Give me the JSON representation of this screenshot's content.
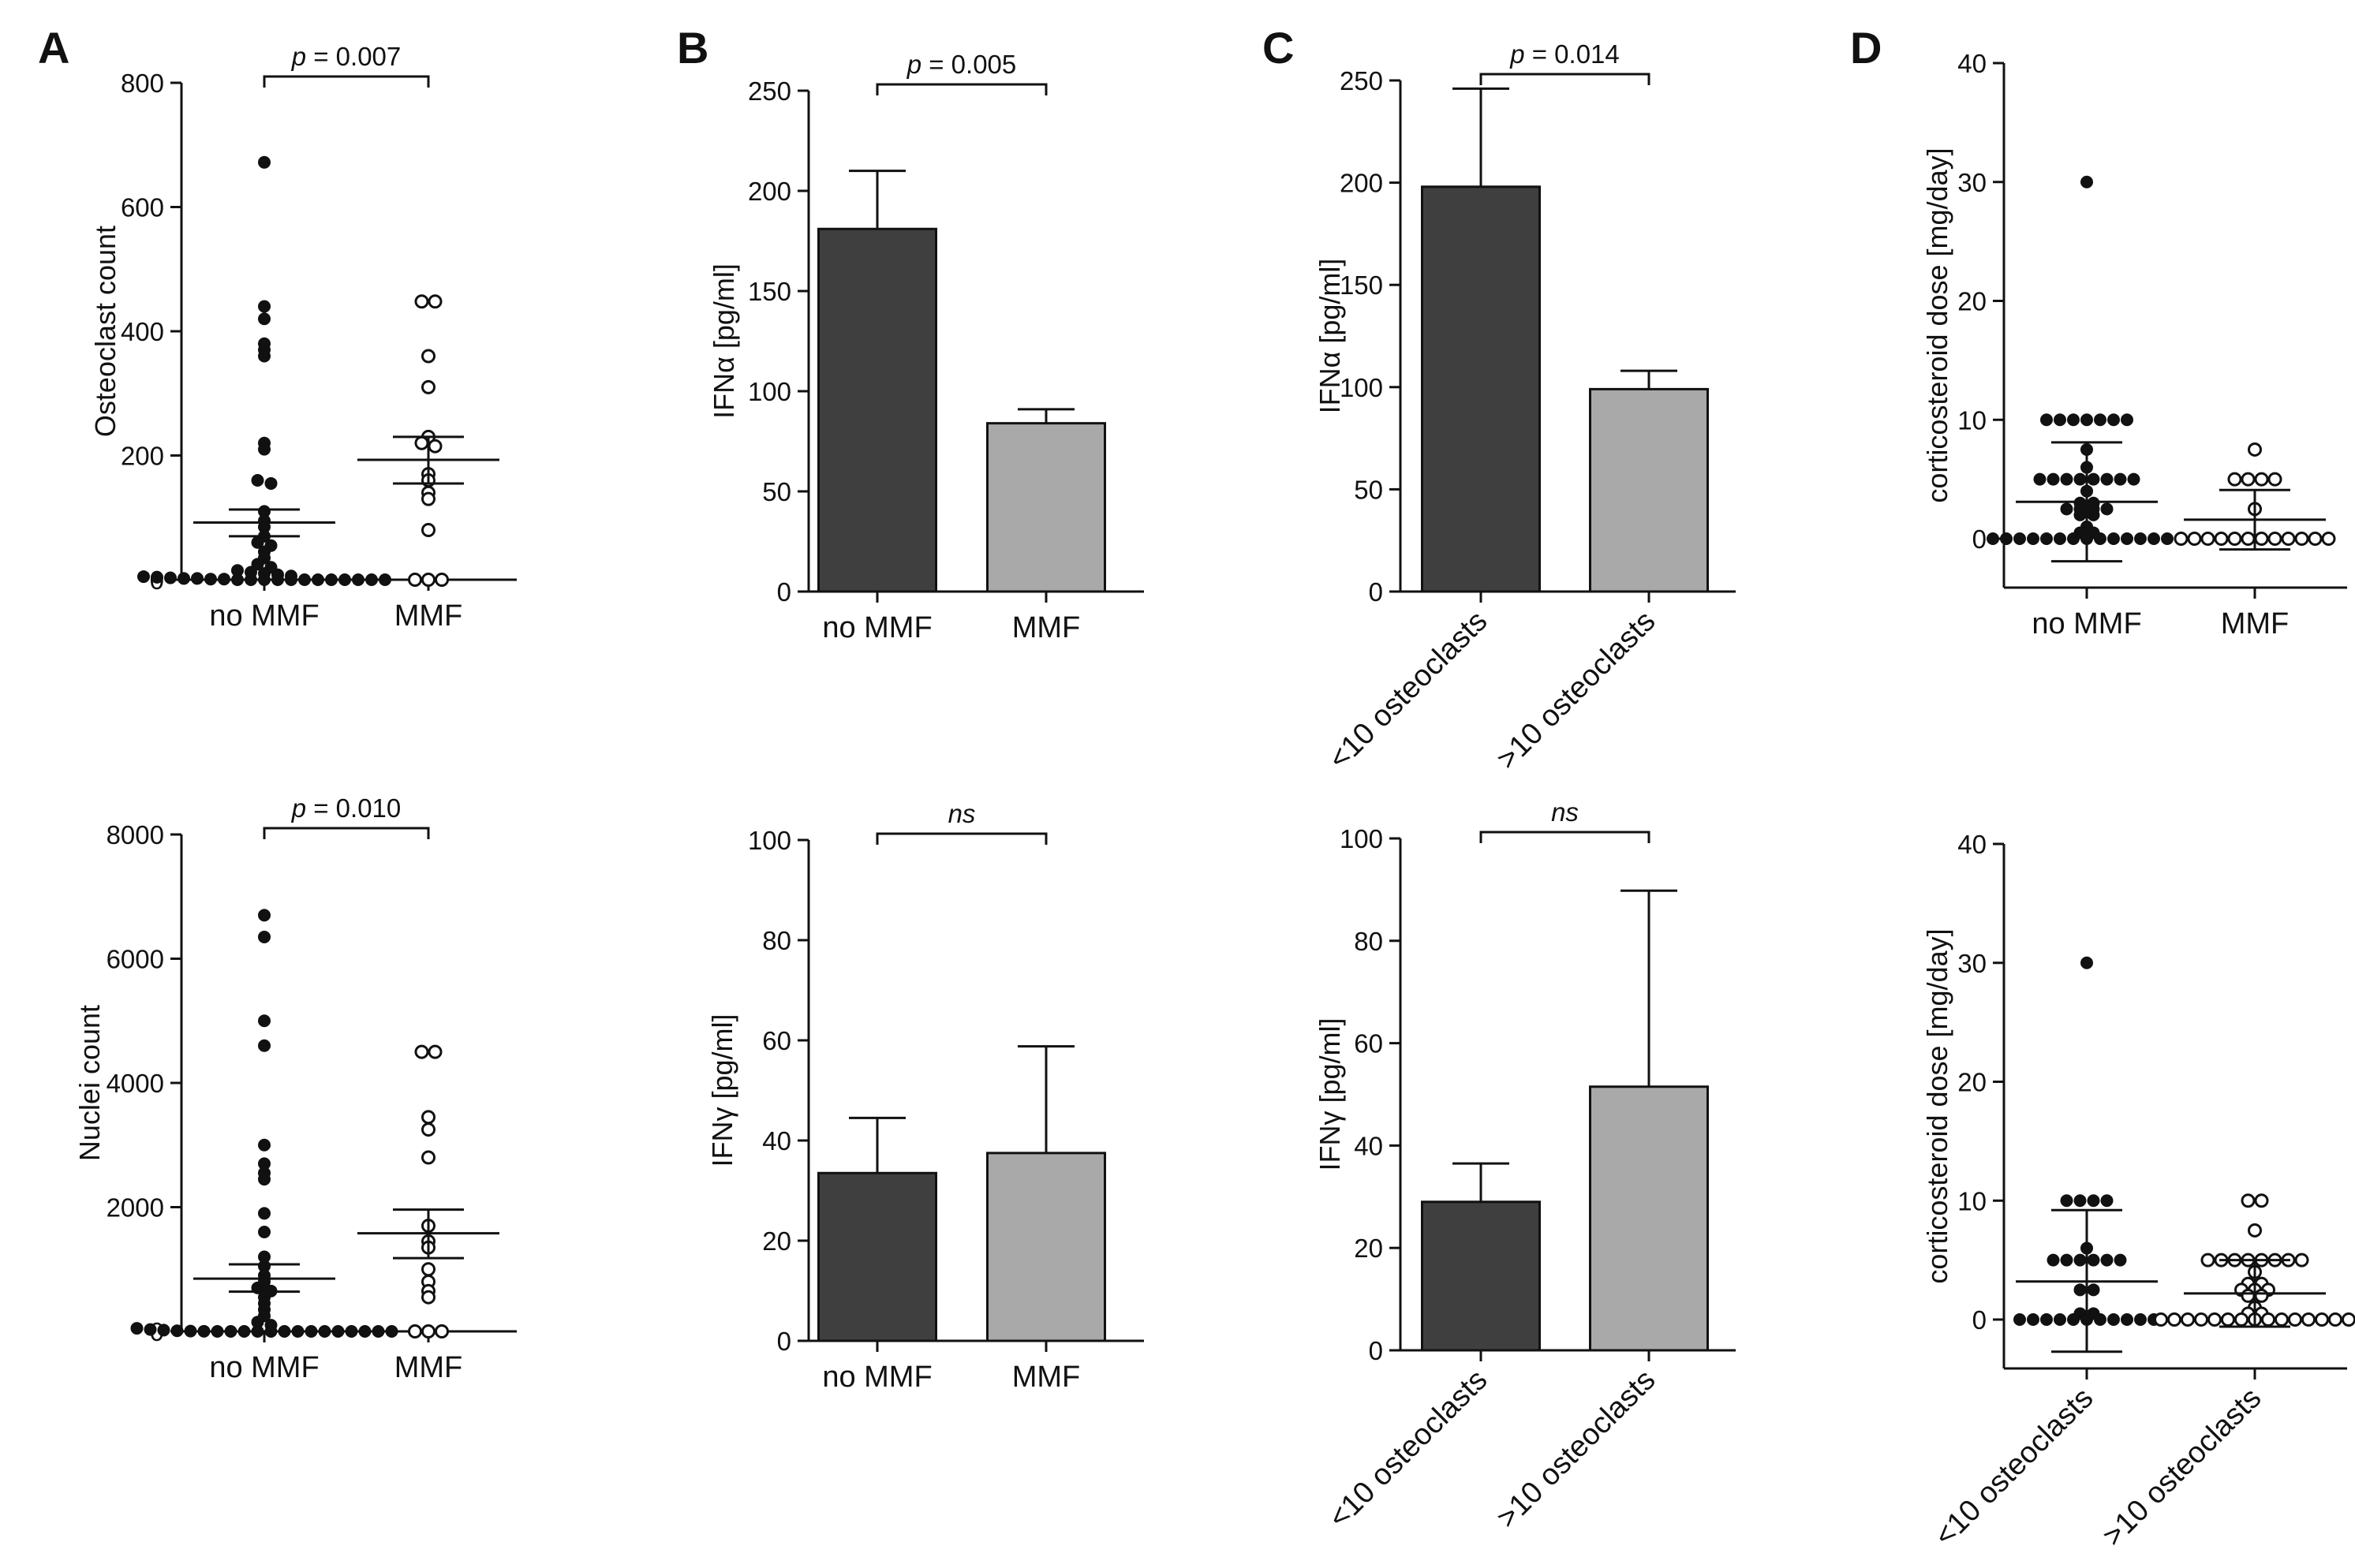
{
  "colors": {
    "dark_bar": "#3f3f3f",
    "light_bar": "#a9a9a9",
    "axis": "#111111",
    "points": "#111111"
  },
  "panel_letters": [
    "A",
    "B",
    "C",
    "D"
  ],
  "chart_data": [
    {
      "id": "A-top",
      "type": "scatter",
      "ylabel": "Osteoclast count",
      "ylim": [
        0,
        800
      ],
      "yticks": [
        0,
        200,
        400,
        600,
        800
      ],
      "categories": [
        "no MMF",
        "MMF"
      ],
      "significance": {
        "prefix": "p",
        "text": " = 0.007"
      },
      "groups": [
        {
          "name": "no MMF",
          "marker": "filled",
          "values": [
            672,
            440,
            420,
            380,
            370,
            360,
            220,
            210,
            160,
            155,
            110,
            95,
            85,
            70,
            60,
            55,
            45,
            35,
            25,
            20,
            15,
            12,
            10,
            8,
            6,
            5,
            4,
            3,
            2,
            2,
            1,
            1,
            0,
            0,
            0,
            0,
            0,
            0,
            0,
            0,
            0,
            0,
            0,
            0
          ],
          "mean": 92,
          "sem_low": 70,
          "sem_high": 113
        },
        {
          "name": "MMF",
          "marker": "open",
          "values": [
            448,
            448,
            360,
            310,
            230,
            220,
            215,
            170,
            160,
            140,
            130,
            80,
            0,
            0,
            0
          ],
          "mean": 193,
          "sem_low": 155,
          "sem_high": 230
        }
      ]
    },
    {
      "id": "A-bottom",
      "type": "scatter",
      "ylabel": "Nuclei count",
      "ylim": [
        0,
        8000
      ],
      "yticks": [
        0,
        2000,
        4000,
        6000,
        8000
      ],
      "categories": [
        "no MMF",
        "MMF"
      ],
      "significance": {
        "prefix": "p",
        "text": " = 0.010"
      },
      "groups": [
        {
          "name": "no MMF",
          "marker": "filled",
          "values": [
            6700,
            6350,
            5000,
            4600,
            3000,
            2700,
            2550,
            2450,
            1900,
            1600,
            1200,
            1050,
            900,
            800,
            700,
            650,
            550,
            450,
            350,
            250,
            150,
            100,
            50,
            30,
            20,
            10,
            5,
            2,
            0,
            0,
            0,
            0,
            0,
            0,
            0,
            0,
            0,
            0,
            0,
            0,
            0,
            0
          ],
          "mean": 850,
          "sem_low": 640,
          "sem_high": 1080
        },
        {
          "name": "MMF",
          "marker": "open",
          "values": [
            4500,
            4500,
            3450,
            3250,
            2800,
            1700,
            1450,
            1350,
            1000,
            800,
            650,
            550,
            0,
            0,
            0
          ],
          "mean": 1580,
          "sem_low": 1180,
          "sem_high": 1960
        }
      ]
    },
    {
      "id": "B-top",
      "type": "bar",
      "ylabel": "IFNα [pg/ml]",
      "ylim": [
        0,
        250
      ],
      "yticks": [
        0,
        50,
        100,
        150,
        200,
        250
      ],
      "categories": [
        "no MMF",
        "MMF"
      ],
      "values": [
        181,
        84
      ],
      "errors": [
        29,
        7
      ],
      "significance": {
        "prefix": "p",
        "text": " = 0.005"
      }
    },
    {
      "id": "B-bottom",
      "type": "bar",
      "ylabel": "IFNγ [pg/ml]",
      "ylim": [
        0,
        100
      ],
      "yticks": [
        0,
        20,
        40,
        60,
        80,
        100
      ],
      "categories": [
        "no MMF",
        "MMF"
      ],
      "values": [
        33.5,
        37.5
      ],
      "errors": [
        11,
        21.3
      ],
      "significance": {
        "prefix": "",
        "text": "ns"
      }
    },
    {
      "id": "C-top",
      "type": "bar",
      "ylabel": "IFNα [pg/ml]",
      "ylim": [
        0,
        250
      ],
      "yticks": [
        0,
        50,
        100,
        150,
        200,
        250
      ],
      "categories": [
        "<10 osteoclasts",
        ">10 osteoclasts"
      ],
      "values": [
        198,
        99
      ],
      "errors": [
        48,
        9
      ],
      "significance": {
        "prefix": "p",
        "text": " = 0.014"
      }
    },
    {
      "id": "C-bottom",
      "type": "bar",
      "ylabel": "IFNγ [pg/ml]",
      "ylim": [
        0,
        100
      ],
      "yticks": [
        0,
        20,
        40,
        60,
        80,
        100
      ],
      "categories": [
        "<10 osteoclasts",
        ">10 osteoclasts"
      ],
      "values": [
        29,
        51.5
      ],
      "errors": [
        7.5,
        38.3
      ],
      "significance": {
        "prefix": "",
        "text": "ns"
      }
    },
    {
      "id": "D-top",
      "type": "scatter",
      "ylabel": "corticosteroid dose [mg/day]",
      "ylim": [
        0,
        40
      ],
      "yticks": [
        0,
        10,
        20,
        30,
        40
      ],
      "categories": [
        "no MMF",
        "MMF"
      ],
      "groups": [
        {
          "name": "no MMF",
          "marker": "filled",
          "values": [
            30,
            10,
            10,
            10,
            10,
            10,
            10,
            10,
            7.5,
            6,
            5,
            5,
            5,
            5,
            5,
            5,
            5,
            5,
            4,
            3,
            3,
            2.5,
            2.5,
            2.5,
            2.5,
            2,
            2,
            1,
            0.5,
            0.5,
            0,
            0,
            0,
            0,
            0,
            0,
            0,
            0,
            0,
            0,
            0,
            0,
            0,
            0,
            0
          ],
          "mean": 3.1,
          "sd_low": -1.9,
          "sd_high": 8.1
        },
        {
          "name": "MMF",
          "marker": "open",
          "values": [
            7.5,
            5,
            5,
            5,
            5,
            2.5,
            0,
            0,
            0,
            0,
            0,
            0,
            0,
            0,
            0,
            0,
            0,
            0
          ],
          "mean": 1.6,
          "sd_low": -0.9,
          "sd_high": 4.1
        }
      ]
    },
    {
      "id": "D-bottom",
      "type": "scatter",
      "ylabel": "corticosteroid dose [mg/day]",
      "ylim": [
        0,
        40
      ],
      "yticks": [
        0,
        10,
        20,
        30,
        40
      ],
      "categories": [
        "<10 osteoclasts",
        ">10 osteoclasts"
      ],
      "groups": [
        {
          "name": "<10 osteoclasts",
          "marker": "filled",
          "values": [
            30,
            10,
            10,
            10,
            10,
            6,
            5,
            5,
            5,
            5,
            5,
            5,
            2.5,
            2.5,
            0.5,
            0.5,
            0,
            0,
            0,
            0,
            0,
            0,
            0,
            0,
            0,
            0,
            0
          ],
          "mean": 3.2,
          "sd_low": -2.7,
          "sd_high": 9.2
        },
        {
          "name": ">10 osteoclasts",
          "marker": "open",
          "values": [
            10,
            10,
            7.5,
            5,
            5,
            5,
            5,
            5,
            5,
            5,
            5,
            4,
            3,
            3,
            2.5,
            2.5,
            2.5,
            2,
            2,
            1,
            0.5,
            0.5,
            0,
            0,
            0,
            0,
            0,
            0,
            0,
            0,
            0,
            0,
            0,
            0,
            0,
            0,
            0
          ],
          "mean": 2.2,
          "sd_low": -0.6,
          "sd_high": 5.0
        }
      ]
    }
  ]
}
